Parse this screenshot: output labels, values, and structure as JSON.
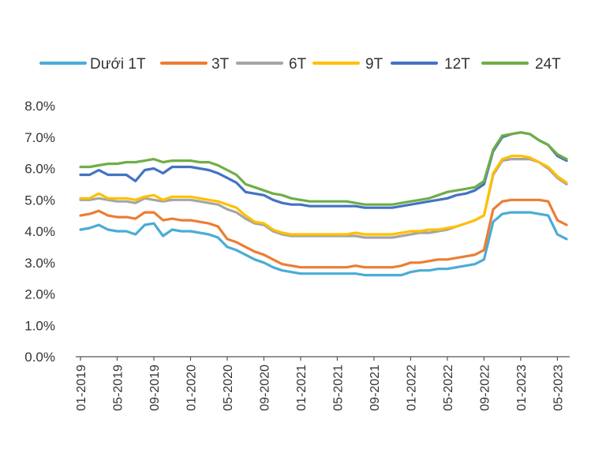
{
  "chart_data": {
    "type": "line",
    "title": "",
    "xlabel": "",
    "ylabel": "",
    "ylim": [
      0,
      8
    ],
    "grid": false,
    "legend_position": "top",
    "y_ticks": [
      "0.0%",
      "1.0%",
      "2.0%",
      "3.0%",
      "4.0%",
      "5.0%",
      "6.0%",
      "7.0%",
      "8.0%"
    ],
    "x_ticks": [
      "01-2019",
      "05-2019",
      "09-2019",
      "01-2020",
      "05-2020",
      "09-2020",
      "01-2021",
      "05-2021",
      "09-2021",
      "01-2022",
      "05-2022",
      "09-2022",
      "01-2023",
      "05-2023"
    ],
    "x": [
      "01-2019",
      "02-2019",
      "03-2019",
      "04-2019",
      "05-2019",
      "06-2019",
      "07-2019",
      "08-2019",
      "09-2019",
      "10-2019",
      "11-2019",
      "12-2019",
      "01-2020",
      "02-2020",
      "03-2020",
      "04-2020",
      "05-2020",
      "06-2020",
      "07-2020",
      "08-2020",
      "09-2020",
      "10-2020",
      "11-2020",
      "12-2020",
      "01-2021",
      "02-2021",
      "03-2021",
      "04-2021",
      "05-2021",
      "06-2021",
      "07-2021",
      "08-2021",
      "09-2021",
      "10-2021",
      "11-2021",
      "12-2021",
      "01-2022",
      "02-2022",
      "03-2022",
      "04-2022",
      "05-2022",
      "06-2022",
      "07-2022",
      "08-2022",
      "09-2022",
      "10-2022",
      "11-2022",
      "12-2022",
      "01-2023",
      "02-2023",
      "03-2023",
      "04-2023",
      "05-2023",
      "06-2023"
    ],
    "series": [
      {
        "name": "Dưới 1T",
        "color": "#4BACD6",
        "values": [
          4.05,
          4.1,
          4.2,
          4.05,
          4.0,
          4.0,
          3.9,
          4.2,
          4.25,
          3.85,
          4.05,
          4.0,
          4.0,
          3.95,
          3.9,
          3.8,
          3.5,
          3.4,
          3.25,
          3.1,
          3.0,
          2.85,
          2.75,
          2.7,
          2.65,
          2.65,
          2.65,
          2.65,
          2.65,
          2.65,
          2.65,
          2.6,
          2.6,
          2.6,
          2.6,
          2.6,
          2.7,
          2.75,
          2.75,
          2.8,
          2.8,
          2.85,
          2.9,
          2.95,
          3.1,
          4.3,
          4.55,
          4.6,
          4.6,
          4.6,
          4.55,
          4.5,
          3.9,
          3.75
        ]
      },
      {
        "name": "3T",
        "color": "#ED7D31",
        "values": [
          4.5,
          4.55,
          4.65,
          4.5,
          4.45,
          4.45,
          4.4,
          4.6,
          4.6,
          4.35,
          4.4,
          4.35,
          4.35,
          4.3,
          4.25,
          4.15,
          3.75,
          3.65,
          3.5,
          3.35,
          3.25,
          3.1,
          2.95,
          2.9,
          2.85,
          2.85,
          2.85,
          2.85,
          2.85,
          2.85,
          2.9,
          2.85,
          2.85,
          2.85,
          2.85,
          2.9,
          3.0,
          3.0,
          3.05,
          3.1,
          3.1,
          3.15,
          3.2,
          3.25,
          3.4,
          4.7,
          4.95,
          5.0,
          5.0,
          5.0,
          5.0,
          4.95,
          4.35,
          4.2
        ]
      },
      {
        "name": "6T",
        "color": "#A5A5A5",
        "values": [
          5.0,
          5.0,
          5.05,
          5.0,
          4.95,
          4.95,
          4.9,
          5.05,
          5.0,
          4.95,
          5.0,
          5.0,
          5.0,
          4.95,
          4.9,
          4.85,
          4.7,
          4.6,
          4.4,
          4.25,
          4.2,
          4.0,
          3.9,
          3.85,
          3.85,
          3.85,
          3.85,
          3.85,
          3.85,
          3.85,
          3.85,
          3.8,
          3.8,
          3.8,
          3.8,
          3.85,
          3.9,
          3.95,
          3.95,
          4.0,
          4.05,
          4.15,
          4.25,
          4.35,
          4.5,
          5.8,
          6.25,
          6.3,
          6.3,
          6.3,
          6.2,
          6.0,
          5.7,
          5.5
        ]
      },
      {
        "name": "9T",
        "color": "#FFC000",
        "values": [
          5.05,
          5.05,
          5.2,
          5.05,
          5.05,
          5.05,
          5.0,
          5.1,
          5.15,
          5.0,
          5.1,
          5.1,
          5.1,
          5.05,
          5.0,
          4.95,
          4.85,
          4.75,
          4.5,
          4.3,
          4.25,
          4.05,
          3.95,
          3.9,
          3.9,
          3.9,
          3.9,
          3.9,
          3.9,
          3.9,
          3.95,
          3.9,
          3.9,
          3.9,
          3.9,
          3.95,
          4.0,
          4.0,
          4.05,
          4.05,
          4.1,
          4.15,
          4.25,
          4.35,
          4.5,
          5.85,
          6.3,
          6.4,
          6.4,
          6.35,
          6.2,
          6.05,
          5.75,
          5.55
        ]
      },
      {
        "name": "12T",
        "color": "#4472C4",
        "values": [
          5.8,
          5.8,
          5.95,
          5.8,
          5.8,
          5.8,
          5.6,
          5.95,
          6.0,
          5.85,
          6.05,
          6.05,
          6.05,
          6.0,
          5.95,
          5.85,
          5.7,
          5.55,
          5.25,
          5.2,
          5.15,
          5.0,
          4.9,
          4.85,
          4.85,
          4.8,
          4.8,
          4.8,
          4.8,
          4.8,
          4.8,
          4.75,
          4.75,
          4.75,
          4.75,
          4.8,
          4.85,
          4.9,
          4.95,
          5.0,
          5.05,
          5.15,
          5.2,
          5.3,
          5.5,
          6.55,
          7.0,
          7.1,
          7.15,
          7.1,
          6.9,
          6.75,
          6.4,
          6.25
        ]
      },
      {
        "name": "24T",
        "color": "#70AD47",
        "values": [
          6.05,
          6.05,
          6.1,
          6.15,
          6.15,
          6.2,
          6.2,
          6.25,
          6.3,
          6.2,
          6.25,
          6.25,
          6.25,
          6.2,
          6.2,
          6.1,
          5.95,
          5.8,
          5.5,
          5.4,
          5.3,
          5.2,
          5.15,
          5.05,
          5.0,
          4.95,
          4.95,
          4.95,
          4.95,
          4.95,
          4.9,
          4.85,
          4.85,
          4.85,
          4.85,
          4.9,
          4.95,
          5.0,
          5.05,
          5.15,
          5.25,
          5.3,
          5.35,
          5.4,
          5.6,
          6.6,
          7.05,
          7.1,
          7.15,
          7.1,
          6.9,
          6.75,
          6.45,
          6.3
        ]
      }
    ]
  }
}
